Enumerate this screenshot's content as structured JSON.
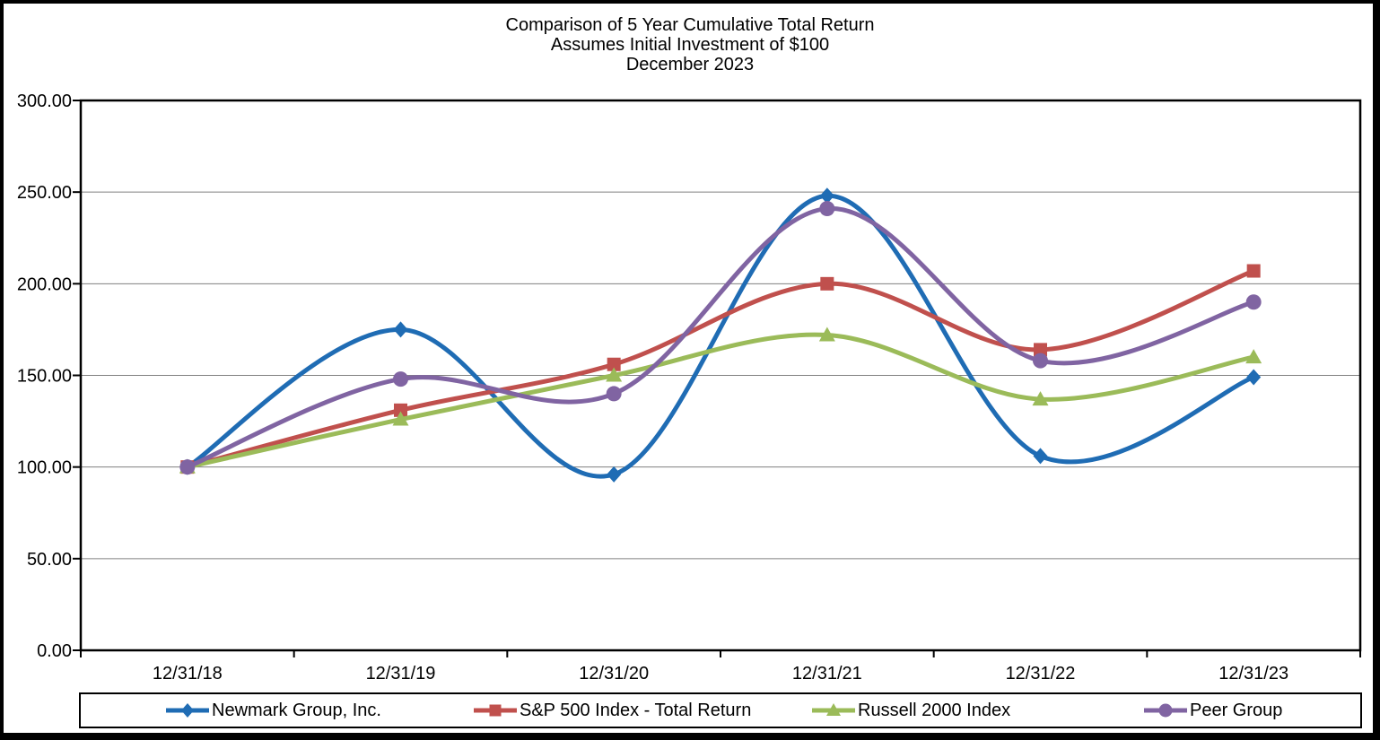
{
  "title": {
    "line1": "Comparison of 5 Year Cumulative Total Return",
    "line2": "Assumes Initial Investment of $100",
    "line3": "December 2023"
  },
  "chart_data": {
    "type": "line",
    "smooth": true,
    "grid": true,
    "legend_position": "bottom",
    "categories": [
      "12/31/18",
      "12/31/19",
      "12/31/20",
      "12/31/21",
      "12/31/22",
      "12/31/23"
    ],
    "series": [
      {
        "name": "Newmark Group, Inc.",
        "marker": "diamond",
        "color": "#1F6CB4",
        "values": [
          100,
          175,
          96,
          248,
          106,
          149
        ]
      },
      {
        "name": "S&P 500 Index - Total Return",
        "marker": "square",
        "color": "#C0504D",
        "values": [
          100,
          131,
          156,
          200,
          164,
          207
        ]
      },
      {
        "name": "Russell 2000 Index",
        "marker": "triangle",
        "color": "#9BBB59",
        "values": [
          100,
          126,
          150,
          172,
          137,
          160
        ]
      },
      {
        "name": "Peer Group",
        "marker": "circle",
        "color": "#8064A2",
        "values": [
          100,
          148,
          140,
          241,
          158,
          190
        ]
      }
    ],
    "ylim": [
      0,
      300
    ],
    "y_tick_labels": [
      "300.00",
      "250.00",
      "200.00",
      "150.00",
      "100.00",
      "50.00",
      "0.00"
    ],
    "y_tick_values": [
      300,
      250,
      200,
      150,
      100,
      50,
      0
    ],
    "xlabel": "",
    "ylabel": "",
    "gridline_color": "#808080",
    "axis_color": "#000000"
  }
}
